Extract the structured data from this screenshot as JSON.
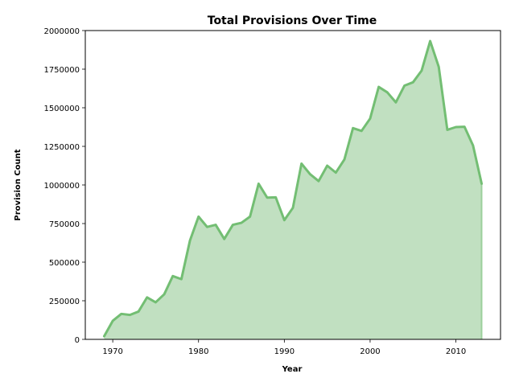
{
  "chart_data": {
    "type": "area",
    "title": "Total Provisions Over Time",
    "xlabel": "Year",
    "ylabel": "Provision Count",
    "xlim": [
      1966.8,
      2015.2
    ],
    "ylim": [
      0,
      2000000
    ],
    "xticks": [
      1970,
      1980,
      1990,
      2000,
      2010
    ],
    "yticks": [
      0,
      250000,
      500000,
      750000,
      1000000,
      1250000,
      1500000,
      1750000,
      2000000
    ],
    "grid": false,
    "colors": {
      "fill": "#c1e0c1",
      "line": "#73be73"
    },
    "series": [
      {
        "x": [
          1969,
          1970,
          1971,
          1972,
          1973,
          1974,
          1975,
          1976,
          1977,
          1978,
          1979,
          1980,
          1981,
          1982,
          1983,
          1984,
          1985,
          1986,
          1987,
          1988,
          1989,
          1990,
          1991,
          1992,
          1993,
          1994,
          1995,
          1996,
          1997,
          1998,
          1999,
          2000,
          2001,
          2002,
          2003,
          2004,
          2005,
          2006,
          2007,
          2008,
          2009,
          2010,
          2011,
          2012,
          2013
        ],
        "y": [
          20000,
          120000,
          165000,
          158000,
          180000,
          272000,
          240000,
          292000,
          410000,
          390000,
          640000,
          795000,
          728000,
          742000,
          650000,
          742000,
          755000,
          795000,
          1008000,
          918000,
          920000,
          772000,
          852000,
          1138000,
          1070000,
          1025000,
          1125000,
          1080000,
          1165000,
          1368000,
          1350000,
          1430000,
          1635000,
          1600000,
          1535000,
          1643000,
          1665000,
          1740000,
          1932000,
          1765000,
          1357000,
          1375000,
          1377000,
          1255000,
          1008000
        ]
      }
    ]
  }
}
